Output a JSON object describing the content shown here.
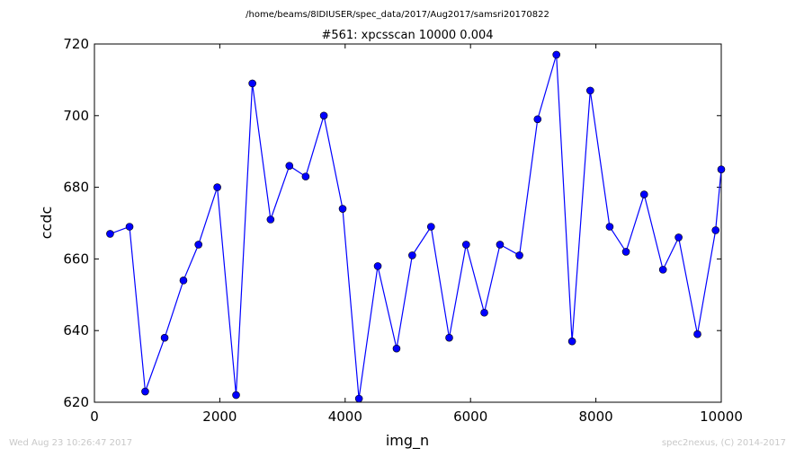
{
  "suptitle": "/home/beams/8IDIUSER/spec_data/2017/Aug2017/samsri20170822",
  "footer": {
    "timestamp": "Wed Aug 23 10:26:47 2017",
    "credit": "spec2nexus, (C) 2014-2017"
  },
  "chart_data": {
    "type": "line",
    "title": "#561: xpcsscan 10000 0.004",
    "xlabel": "img_n",
    "ylabel": "ccdc",
    "xlim": [
      0,
      10000
    ],
    "ylim": [
      620,
      720
    ],
    "xticks": [
      0,
      2000,
      4000,
      6000,
      8000,
      10000
    ],
    "yticks": [
      620,
      640,
      660,
      680,
      700,
      720
    ],
    "grid": false,
    "series": [
      {
        "color": "#0000ff",
        "marker": "circle",
        "x": [
          250,
          560,
          810,
          1120,
          1420,
          1660,
          1960,
          2260,
          2520,
          2810,
          3110,
          3370,
          3660,
          3960,
          4220,
          4520,
          4820,
          5070,
          5370,
          5660,
          5930,
          6220,
          6470,
          6780,
          7070,
          7370,
          7620,
          7910,
          8220,
          8480,
          8770,
          9070,
          9320,
          9620,
          9910,
          10000
        ],
        "y": [
          667,
          669,
          623,
          638,
          654,
          664,
          680,
          622,
          709,
          671,
          686,
          683,
          700,
          674,
          621,
          658,
          635,
          661,
          669,
          638,
          664,
          645,
          664,
          661,
          699,
          717,
          637,
          707,
          669,
          662,
          678,
          657,
          666,
          639,
          668,
          685
        ]
      }
    ]
  }
}
